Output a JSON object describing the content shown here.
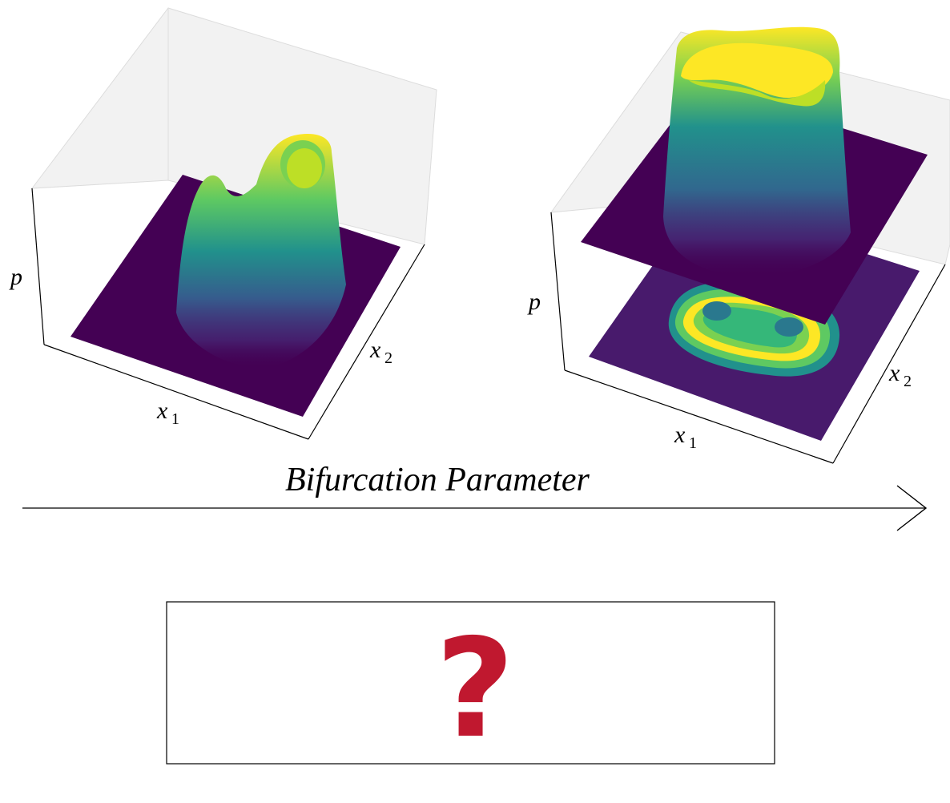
{
  "left_plot": {
    "z_label": "p",
    "x1_label": "x",
    "x1_sub": "1",
    "x2_label": "x",
    "x2_sub": "2"
  },
  "right_plot": {
    "z_label": "p",
    "x1_label": "x",
    "x1_sub": "1",
    "x2_label": "x",
    "x2_sub": "2"
  },
  "arrow": {
    "label": "Bifurcation Parameter"
  },
  "unknown_box": {
    "symbol": "?"
  },
  "colors": {
    "viridis_low": "#440154",
    "viridis_mid": "#21918c",
    "viridis_high": "#fde725",
    "question": "#c0182f"
  }
}
